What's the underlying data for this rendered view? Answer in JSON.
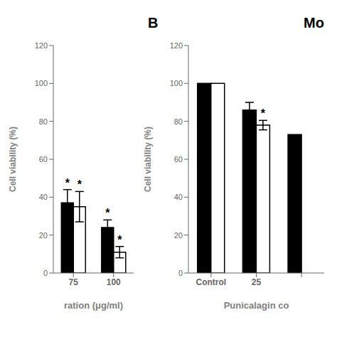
{
  "chart_data": [
    {
      "type": "bar",
      "xlabel": "ration (μg/ml)",
      "ylabel": "Cell viability (%)",
      "categories": [
        "75",
        "100"
      ],
      "series": [
        {
          "color": "#000000",
          "values": [
            37,
            24
          ],
          "errors": [
            7,
            4
          ],
          "annotations": [
            "*",
            "*"
          ]
        },
        {
          "color": "#ffffff",
          "values": [
            35,
            11
          ],
          "errors": [
            8,
            3
          ],
          "annotations": [
            "*",
            "*"
          ]
        }
      ],
      "ylim": [
        0,
        120
      ],
      "yticks": [
        0,
        20,
        40,
        60,
        80,
        100,
        120
      ]
    },
    {
      "type": "bar",
      "title": "B",
      "subtitle": "Mo",
      "xlabel": "Punicalagin co",
      "ylabel": "Cell viability (%)",
      "categories": [
        "Control",
        "25",
        null
      ],
      "series": [
        {
          "color": "#000000",
          "values": [
            100,
            86,
            73
          ],
          "errors": [
            null,
            4,
            null
          ]
        },
        {
          "color": "#ffffff",
          "values": [
            100,
            78,
            null
          ],
          "errors": [
            null,
            2.5,
            null
          ],
          "annotations": [
            null,
            "*",
            null
          ]
        }
      ],
      "ylim": [
        0,
        120
      ],
      "yticks": [
        0,
        20,
        40,
        60,
        80,
        100,
        120
      ]
    }
  ]
}
